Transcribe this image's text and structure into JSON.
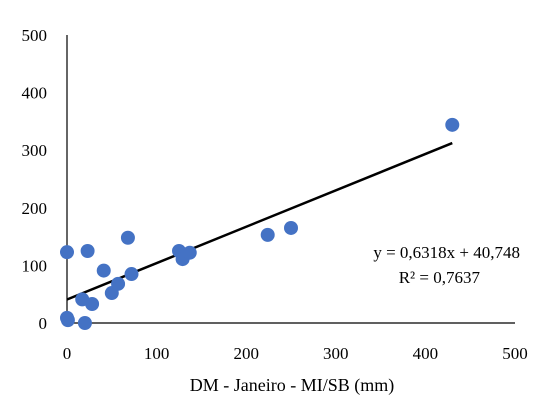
{
  "chart_data": {
    "type": "scatter",
    "xlabel": "DM - Janeiro - MI/SB (mm)",
    "ylabel": "",
    "xlim": [
      0,
      500
    ],
    "ylim": [
      0,
      500
    ],
    "x_ticks": [
      0,
      100,
      200,
      300,
      400,
      500
    ],
    "y_ticks": [
      0,
      100,
      200,
      300,
      400,
      500
    ],
    "grid": false,
    "marker_color": "#4472C4",
    "trendline_color": "#000000",
    "series": [
      {
        "points": [
          {
            "x": 0,
            "y": 123
          },
          {
            "x": 0,
            "y": 9
          },
          {
            "x": 1,
            "y": 5
          },
          {
            "x": 17,
            "y": 41
          },
          {
            "x": 20,
            "y": 0
          },
          {
            "x": 23,
            "y": 125
          },
          {
            "x": 28,
            "y": 33
          },
          {
            "x": 41,
            "y": 91
          },
          {
            "x": 50,
            "y": 52
          },
          {
            "x": 57,
            "y": 68
          },
          {
            "x": 68,
            "y": 148
          },
          {
            "x": 72,
            "y": 85
          },
          {
            "x": 125,
            "y": 125
          },
          {
            "x": 129,
            "y": 111
          },
          {
            "x": 137,
            "y": 122
          },
          {
            "x": 224,
            "y": 153
          },
          {
            "x": 250,
            "y": 165
          },
          {
            "x": 430,
            "y": 344
          }
        ]
      }
    ],
    "trendline": {
      "slope": 0.6318,
      "intercept": 40.748,
      "x_range": [
        0,
        430
      ],
      "equation": "y = 0,6318x + 40,748",
      "r2": "R² = 0,7637"
    }
  }
}
